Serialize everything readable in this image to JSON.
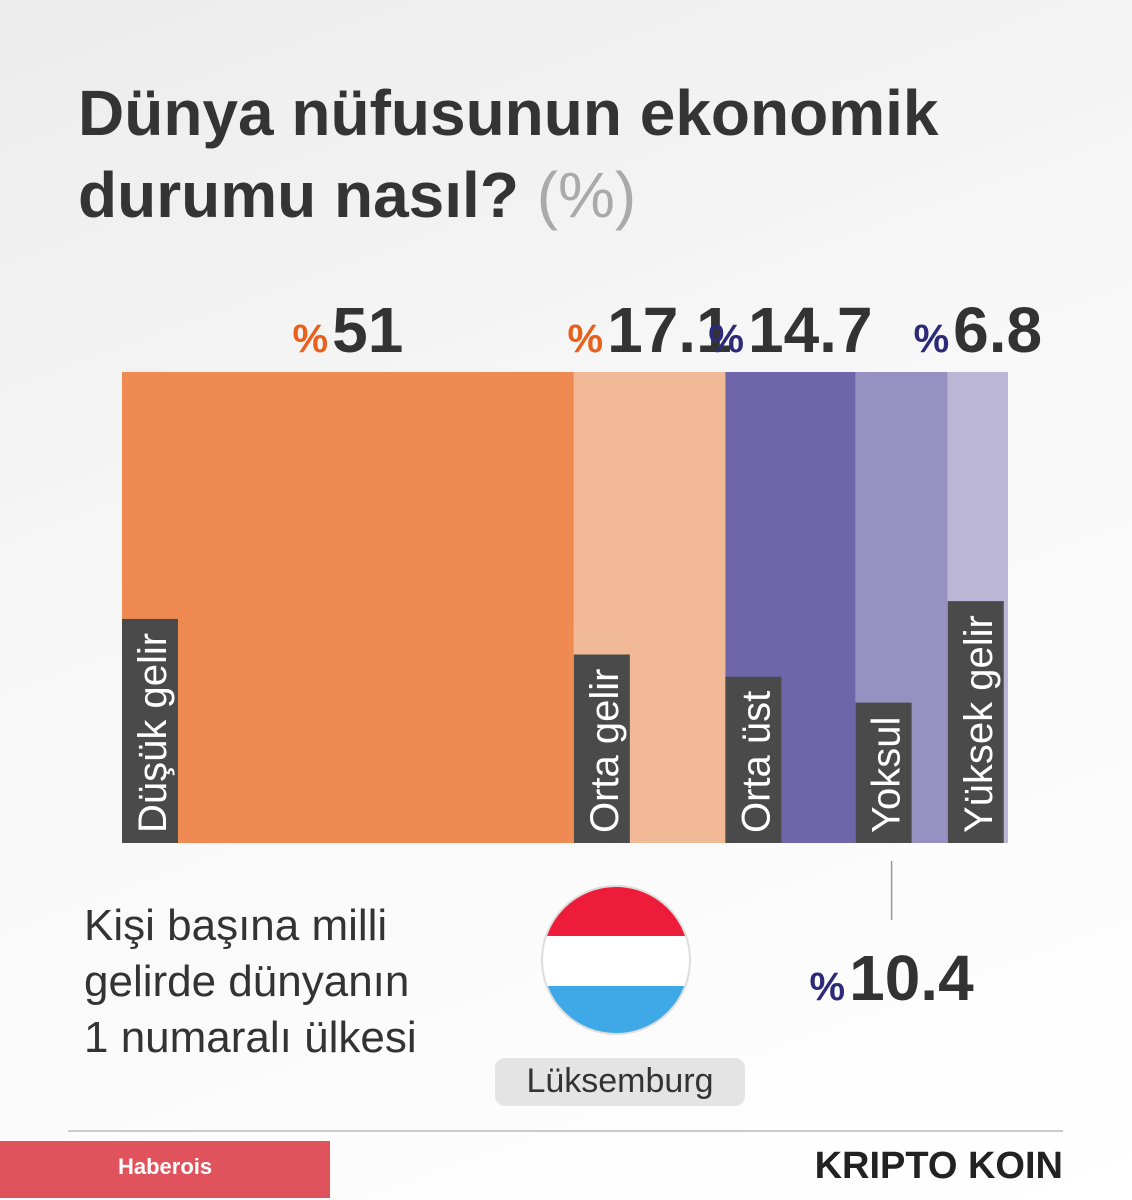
{
  "chart_data": {
    "type": "mosaic",
    "title": "Dünya nüfusunun ekonomik durumu nasıl?",
    "title_unit": "(%)",
    "unit": "%",
    "categories": [
      "Düşük gelir",
      "Orta gelir",
      "Orta üst",
      "Yoksul",
      "Yüksek gelir"
    ],
    "values": [
      51,
      17.1,
      14.7,
      10.4,
      6.8
    ],
    "colors": [
      "#ee8a52",
      "#f2b997",
      "#6f66aa",
      "#9791c2",
      "#bbb6d6"
    ],
    "label_colors": [
      "#e8601c",
      "#e8601c",
      "#2e2a7a",
      "#2e2a7a",
      "#2e2a7a"
    ],
    "xlim": [
      0,
      100
    ]
  },
  "note_lines": [
    "Kişi başına milli",
    "gelirde dünyanın",
    "1 numaralı ülkesi"
  ],
  "country": "Lüksemburg",
  "footer": {
    "source_badge": "Haberois",
    "logo": "KRIPTO KOIN"
  }
}
